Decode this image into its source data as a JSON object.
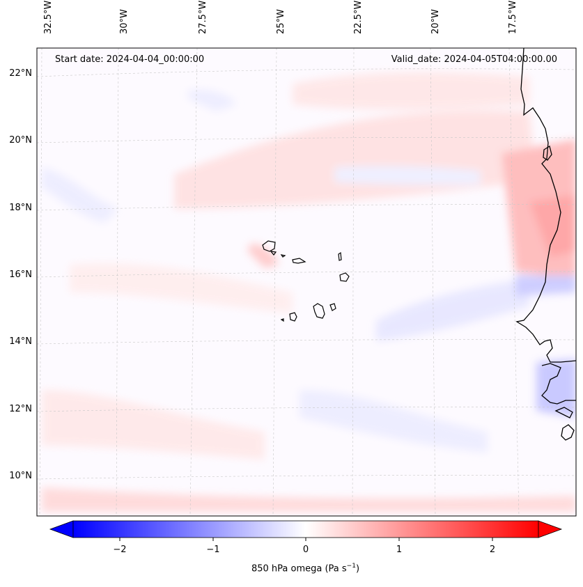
{
  "map": {
    "start_date_text": "Start date: 2024-04-04_00:00:00",
    "valid_date_text": "Valid_date: 2024-04-05T04:00:00.00",
    "longitude_labels": [
      "32.5°W",
      "30°W",
      "27.5°W",
      "25°W",
      "22.5°W",
      "20°W",
      "17.5°W"
    ],
    "latitude_labels": [
      "22°N",
      "20°N",
      "18°N",
      "16°N",
      "14°N",
      "12°N",
      "10°N"
    ],
    "gridlines": "dashed",
    "features": [
      "Cape Verde islands",
      "West African coastline"
    ]
  },
  "colorbar": {
    "label_main": "850 hPa omega (Pa s",
    "label_exp": "−1",
    "label_close": ")",
    "ticks": [
      "−2",
      "−1",
      "0",
      "1",
      "2"
    ],
    "range": [
      -2.5,
      2.5
    ],
    "low_color": "#0000ff",
    "mid_color": "#ffffff",
    "high_color": "#ff0000",
    "extend": "both"
  }
}
